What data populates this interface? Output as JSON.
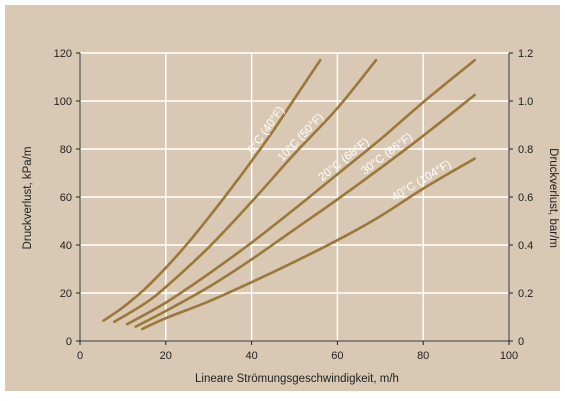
{
  "colors": {
    "background": "#d8c8b4",
    "plot_background": "#d8c8b4",
    "grid": "#ffffff",
    "curve": "#9b7838",
    "axis": "#222222"
  },
  "chart_data": {
    "type": "line",
    "xlabel": "Lineare Strömungsgeschwindigkeit, m/h",
    "ylabel_left": "Druckverlust, kPa/m",
    "ylabel_right": "Druckverlust, bar/m",
    "xlim": [
      0,
      100
    ],
    "ylim_left": [
      0,
      120
    ],
    "ylim_right": [
      0,
      1.2
    ],
    "x_ticks": [
      "0",
      "20",
      "40",
      "60",
      "80",
      "100"
    ],
    "y_ticks_left": [
      "0",
      "20",
      "40",
      "60",
      "80",
      "100",
      "120"
    ],
    "y_ticks_right": [
      "0",
      "0.2",
      "0.4",
      "0.6",
      "0.8",
      "1.0",
      "1.2"
    ],
    "grid": true,
    "series": [
      {
        "name": "5°C (40°F)",
        "points": [
          [
            5.5,
            8.5
          ],
          [
            10,
            14
          ],
          [
            15,
            21.5
          ],
          [
            20,
            30.5
          ],
          [
            25,
            40.5
          ],
          [
            30,
            51.5
          ],
          [
            35,
            63
          ],
          [
            40,
            75
          ],
          [
            45,
            87.5
          ],
          [
            50,
            101
          ],
          [
            56,
            117
          ]
        ]
      },
      {
        "name": "10°C (50°F)",
        "points": [
          [
            8,
            8
          ],
          [
            15,
            15.5
          ],
          [
            20,
            22.5
          ],
          [
            30,
            39
          ],
          [
            40,
            58
          ],
          [
            50,
            78
          ],
          [
            60,
            97
          ],
          [
            69,
            117
          ]
        ]
      },
      {
        "name": "20°C (68°F)",
        "points": [
          [
            11,
            7
          ],
          [
            20,
            16
          ],
          [
            30,
            28
          ],
          [
            40,
            41
          ],
          [
            50,
            55
          ],
          [
            60,
            69.5
          ],
          [
            70,
            84
          ],
          [
            80,
            99.5
          ],
          [
            92,
            117
          ]
        ]
      },
      {
        "name": "30°C (86°F)",
        "points": [
          [
            13,
            6
          ],
          [
            20,
            12.5
          ],
          [
            30,
            22.5
          ],
          [
            40,
            34
          ],
          [
            50,
            46.5
          ],
          [
            60,
            59
          ],
          [
            70,
            72
          ],
          [
            80,
            85.5
          ],
          [
            92,
            102.5
          ]
        ]
      },
      {
        "name": "40°C (104°F)",
        "points": [
          [
            14.5,
            5
          ],
          [
            20,
            9.5
          ],
          [
            30,
            16.5
          ],
          [
            40,
            24.5
          ],
          [
            50,
            33
          ],
          [
            60,
            42
          ],
          [
            70,
            52
          ],
          [
            80,
            63.5
          ],
          [
            92,
            76
          ]
        ]
      }
    ]
  }
}
